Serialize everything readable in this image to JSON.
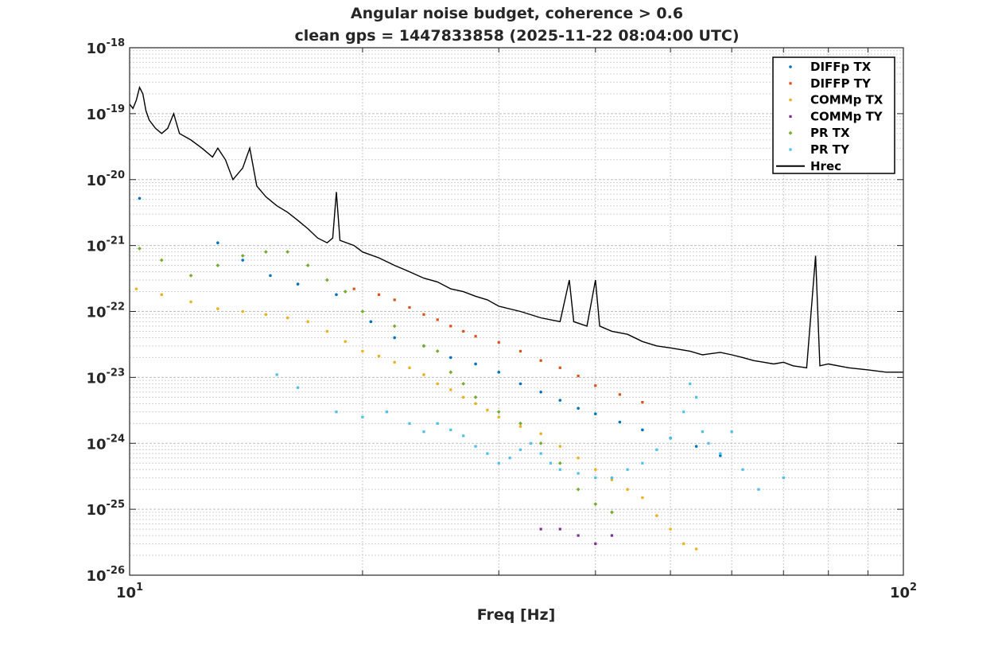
{
  "chart_data": {
    "type": "scatter",
    "title": "Angular noise budget, coherence > 0.6",
    "subtitle": "clean gps = 1447833858 (2025-11-22 08:04:00 UTC)",
    "xlabel": "Freq [Hz]",
    "ylabel": "",
    "xscale": "log",
    "yscale": "log",
    "xlim": [
      10,
      100
    ],
    "ylim": [
      1e-26,
      1e-18
    ],
    "grid": true,
    "minor_grid": true,
    "legend_position": "top-right",
    "x_ticks": [
      {
        "base": "10",
        "exp": "1",
        "value": 10
      },
      {
        "base": "10",
        "exp": "2",
        "value": 100
      }
    ],
    "y_ticks": [
      {
        "base": "10",
        "exp": "-26",
        "value": -26
      },
      {
        "base": "10",
        "exp": "-25",
        "value": -25
      },
      {
        "base": "10",
        "exp": "-24",
        "value": -24
      },
      {
        "base": "10",
        "exp": "-23",
        "value": -23
      },
      {
        "base": "10",
        "exp": "-22",
        "value": -22
      },
      {
        "base": "10",
        "exp": "-21",
        "value": -21
      },
      {
        "base": "10",
        "exp": "-20",
        "value": -20
      },
      {
        "base": "10",
        "exp": "-19",
        "value": -19
      },
      {
        "base": "10",
        "exp": "-18",
        "value": -18
      }
    ],
    "series": [
      {
        "name": "DIFFp TX",
        "color": "#0072bd",
        "marker": "dot",
        "points": [
          [
            10.3,
            5.2e-21
          ],
          [
            13,
            1.1e-21
          ],
          [
            14,
            6e-22
          ],
          [
            15.2,
            3.5e-22
          ],
          [
            16.5,
            2.6e-22
          ],
          [
            18.5,
            1.8e-22
          ],
          [
            20.5,
            7e-23
          ],
          [
            22,
            4e-23
          ],
          [
            24,
            3e-23
          ],
          [
            26,
            2e-23
          ],
          [
            28,
            1.6e-23
          ],
          [
            30,
            1.2e-23
          ],
          [
            32,
            8e-24
          ],
          [
            34,
            6e-24
          ],
          [
            36,
            4.5e-24
          ],
          [
            38,
            3.4e-24
          ],
          [
            40,
            2.8e-24
          ],
          [
            43,
            2.1e-24
          ],
          [
            46,
            1.6e-24
          ],
          [
            50,
            1.2e-24
          ],
          [
            54,
            9e-25
          ],
          [
            58,
            6.5e-25
          ]
        ]
      },
      {
        "name": "DIFFP TY",
        "color": "#d95319",
        "marker": "square",
        "points": [
          [
            19.5,
            2.2e-22
          ],
          [
            21,
            1.8e-22
          ],
          [
            22,
            1.5e-22
          ],
          [
            23,
            1.15e-22
          ],
          [
            24,
            9e-23
          ],
          [
            25,
            7.5e-23
          ],
          [
            26,
            6e-23
          ],
          [
            27,
            5e-23
          ],
          [
            28,
            4.2e-23
          ],
          [
            30,
            3.4e-23
          ],
          [
            32,
            2.5e-23
          ],
          [
            34,
            1.8e-23
          ],
          [
            36,
            1.4e-23
          ],
          [
            38,
            1.05e-23
          ],
          [
            40,
            7.5e-24
          ],
          [
            43,
            5.5e-24
          ],
          [
            46,
            4.2e-24
          ]
        ]
      },
      {
        "name": "COMMp TX",
        "color": "#edb120",
        "marker": "dot",
        "points": [
          [
            10.2,
            2.2e-22
          ],
          [
            11,
            1.8e-22
          ],
          [
            12,
            1.4e-22
          ],
          [
            13,
            1.1e-22
          ],
          [
            14,
            1e-22
          ],
          [
            15,
            9e-23
          ],
          [
            16,
            8e-23
          ],
          [
            17,
            7e-23
          ],
          [
            18,
            5e-23
          ],
          [
            19,
            3.5e-23
          ],
          [
            20,
            2.5e-23
          ],
          [
            21,
            2.1e-23
          ],
          [
            22,
            1.7e-23
          ],
          [
            23,
            1.4e-23
          ],
          [
            24,
            1.1e-23
          ],
          [
            25,
            8e-24
          ],
          [
            26,
            6.5e-24
          ],
          [
            27,
            5e-24
          ],
          [
            28,
            4e-24
          ],
          [
            29,
            3.2e-24
          ],
          [
            30,
            2.5e-24
          ],
          [
            32,
            1.8e-24
          ],
          [
            34,
            1.4e-24
          ],
          [
            36,
            9e-25
          ],
          [
            38,
            6e-25
          ],
          [
            40,
            4e-25
          ],
          [
            42,
            2.8e-25
          ],
          [
            44,
            2e-25
          ],
          [
            46,
            1.5e-25
          ],
          [
            48,
            8e-26
          ],
          [
            50,
            5e-26
          ],
          [
            52,
            3e-26
          ],
          [
            54,
            2.5e-26
          ]
        ]
      },
      {
        "name": "COMMp TY",
        "color": "#7e2f8e",
        "marker": "square",
        "points": [
          [
            34,
            5e-26
          ],
          [
            36,
            5e-26
          ],
          [
            38,
            4e-26
          ],
          [
            40,
            3e-26
          ],
          [
            42,
            4e-26
          ]
        ]
      },
      {
        "name": "PR TX",
        "color": "#77ac30",
        "marker": "diamond",
        "points": [
          [
            10.3,
            9e-22
          ],
          [
            11,
            6e-22
          ],
          [
            12,
            3.5e-22
          ],
          [
            13,
            5e-22
          ],
          [
            14,
            7e-22
          ],
          [
            15,
            8e-22
          ],
          [
            16,
            8e-22
          ],
          [
            17,
            5e-22
          ],
          [
            18,
            3e-22
          ],
          [
            19,
            2e-22
          ],
          [
            20,
            1e-22
          ],
          [
            22,
            6e-23
          ],
          [
            24,
            3e-23
          ],
          [
            25,
            2.5e-23
          ],
          [
            26,
            1.2e-23
          ],
          [
            27,
            8e-24
          ],
          [
            28,
            5e-24
          ],
          [
            30,
            3e-24
          ],
          [
            32,
            2e-24
          ],
          [
            34,
            1e-24
          ],
          [
            36,
            5e-25
          ],
          [
            38,
            2e-25
          ],
          [
            40,
            1.2e-25
          ],
          [
            42,
            9e-26
          ]
        ]
      },
      {
        "name": "PR TY",
        "color": "#4dbeee",
        "marker": "square",
        "points": [
          [
            15.5,
            1.1e-23
          ],
          [
            16.5,
            7e-24
          ],
          [
            18.5,
            3e-24
          ],
          [
            20,
            2.5e-24
          ],
          [
            21.5,
            3e-24
          ],
          [
            23,
            2e-24
          ],
          [
            24,
            1.5e-24
          ],
          [
            25,
            2e-24
          ],
          [
            26,
            1.6e-24
          ],
          [
            27,
            1.3e-24
          ],
          [
            28,
            9e-25
          ],
          [
            29,
            7e-25
          ],
          [
            30,
            5e-25
          ],
          [
            31,
            6e-25
          ],
          [
            32,
            8e-25
          ],
          [
            33,
            1e-24
          ],
          [
            34,
            7e-25
          ],
          [
            35,
            5e-25
          ],
          [
            36,
            4e-25
          ],
          [
            38,
            3.5e-25
          ],
          [
            40,
            3e-25
          ],
          [
            42,
            3e-25
          ],
          [
            44,
            4e-25
          ],
          [
            46,
            5e-25
          ],
          [
            48,
            8e-25
          ],
          [
            50,
            1.2e-24
          ],
          [
            52,
            3e-24
          ],
          [
            53,
            8e-24
          ],
          [
            54,
            5e-24
          ],
          [
            55,
            1.5e-24
          ],
          [
            56,
            1e-24
          ],
          [
            58,
            7e-25
          ],
          [
            60,
            1.5e-24
          ],
          [
            62,
            4e-25
          ],
          [
            65,
            2e-25
          ],
          [
            70,
            3e-25
          ]
        ]
      },
      {
        "name": "Hrec",
        "color": "#000000",
        "marker": "line",
        "points": [
          [
            10,
            1.4e-19
          ],
          [
            10.1,
            1.2e-19
          ],
          [
            10.2,
            1.6e-19
          ],
          [
            10.3,
            2.5e-19
          ],
          [
            10.4,
            2e-19
          ],
          [
            10.5,
            1.1e-19
          ],
          [
            10.6,
            8e-20
          ],
          [
            10.8,
            6e-20
          ],
          [
            11,
            5e-20
          ],
          [
            11.2,
            6e-20
          ],
          [
            11.4,
            1e-19
          ],
          [
            11.6,
            5e-20
          ],
          [
            12,
            4e-20
          ],
          [
            12.4,
            3e-20
          ],
          [
            12.8,
            2.2e-20
          ],
          [
            13,
            3e-20
          ],
          [
            13.3,
            2e-20
          ],
          [
            13.6,
            1e-20
          ],
          [
            14,
            1.5e-20
          ],
          [
            14.3,
            3e-20
          ],
          [
            14.6,
            8e-21
          ],
          [
            15,
            5.5e-21
          ],
          [
            15.5,
            4e-21
          ],
          [
            16,
            3.2e-21
          ],
          [
            16.5,
            2.4e-21
          ],
          [
            17,
            1.8e-21
          ],
          [
            17.5,
            1.3e-21
          ],
          [
            18,
            1.1e-21
          ],
          [
            18.3,
            1.3e-21
          ],
          [
            18.5,
            6.5e-21
          ],
          [
            18.7,
            1.2e-21
          ],
          [
            19.5,
            1e-21
          ],
          [
            20,
            8e-22
          ],
          [
            21,
            6.5e-22
          ],
          [
            22,
            5e-22
          ],
          [
            23,
            4e-22
          ],
          [
            24,
            3.2e-22
          ],
          [
            25,
            2.8e-22
          ],
          [
            26,
            2.2e-22
          ],
          [
            27,
            2e-22
          ],
          [
            28,
            1.7e-22
          ],
          [
            29,
            1.5e-22
          ],
          [
            30,
            1.2e-22
          ],
          [
            32,
            1e-22
          ],
          [
            34,
            8e-23
          ],
          [
            36,
            7e-23
          ],
          [
            37,
            3e-22
          ],
          [
            37.5,
            7e-23
          ],
          [
            39,
            6e-23
          ],
          [
            40,
            3e-22
          ],
          [
            40.5,
            6e-23
          ],
          [
            42,
            5e-23
          ],
          [
            44,
            4.5e-23
          ],
          [
            46,
            3.5e-23
          ],
          [
            48,
            3e-23
          ],
          [
            50,
            2.8e-23
          ],
          [
            53,
            2.5e-23
          ],
          [
            55,
            2.2e-23
          ],
          [
            58,
            2.4e-23
          ],
          [
            60,
            2.2e-23
          ],
          [
            62,
            2e-23
          ],
          [
            64,
            1.8e-23
          ],
          [
            66,
            1.7e-23
          ],
          [
            68,
            1.6e-23
          ],
          [
            70,
            1.7e-23
          ],
          [
            72,
            1.5e-23
          ],
          [
            75,
            1.4e-23
          ],
          [
            77,
            7e-22
          ],
          [
            78,
            1.5e-23
          ],
          [
            80,
            1.6e-23
          ],
          [
            85,
            1.4e-23
          ],
          [
            90,
            1.3e-23
          ],
          [
            95,
            1.2e-23
          ],
          [
            100,
            1.2e-23
          ]
        ]
      }
    ]
  }
}
